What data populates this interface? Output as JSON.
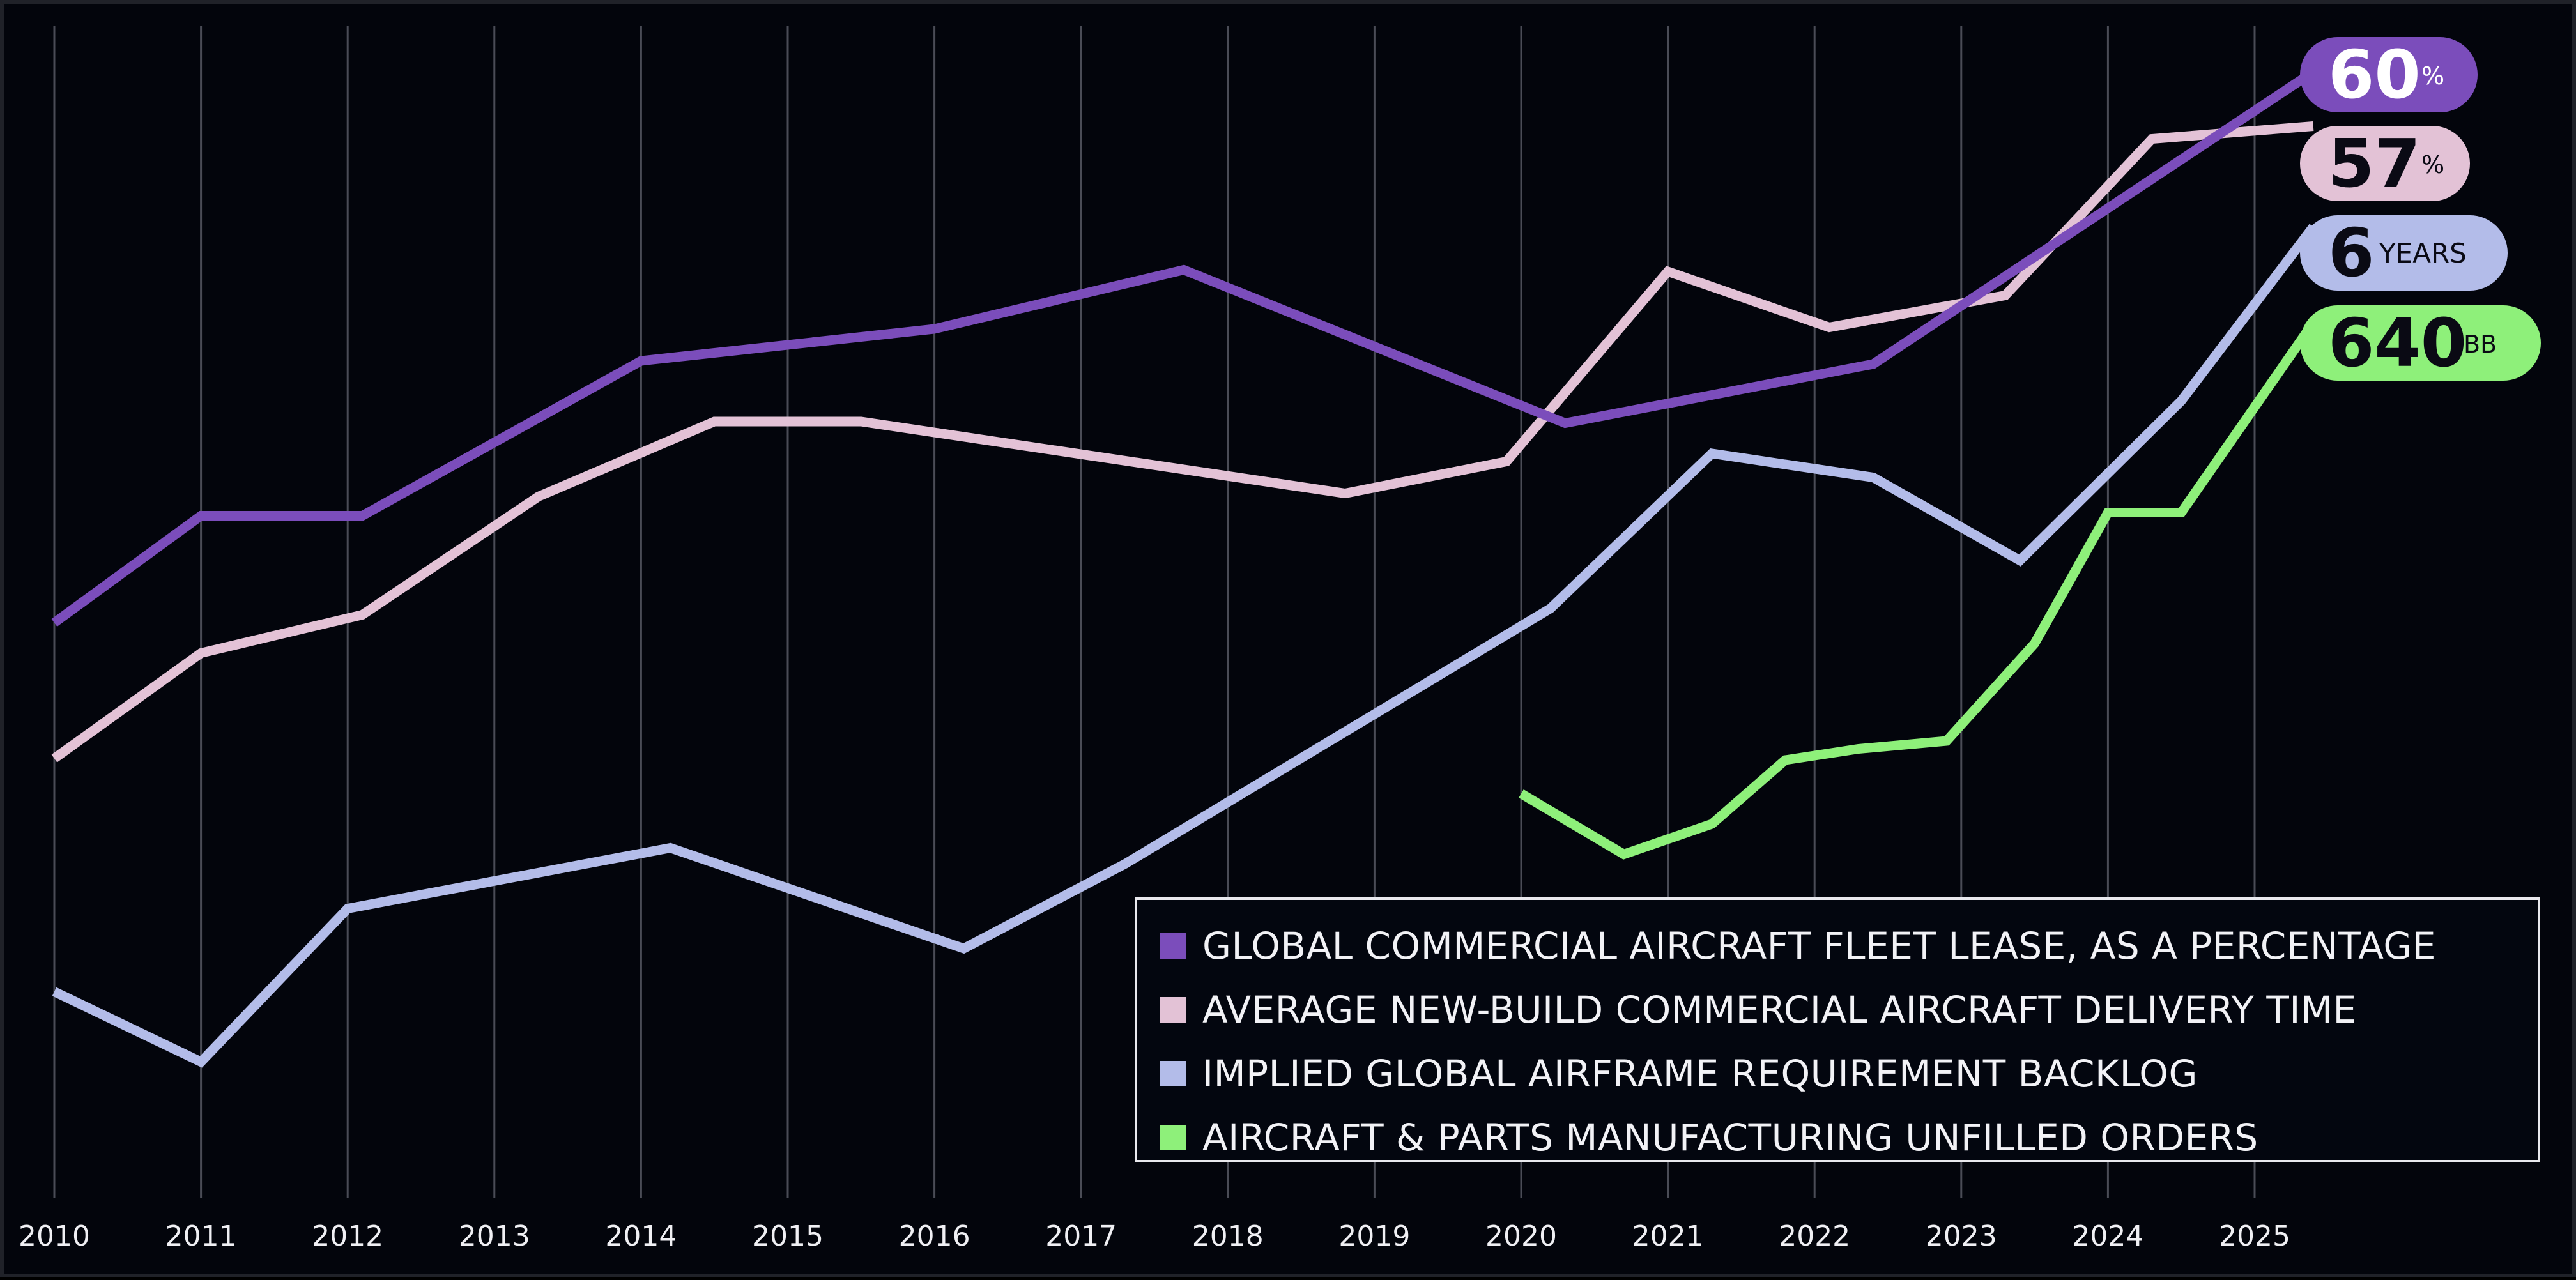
{
  "chart_data": {
    "type": "line",
    "x": [
      "2010",
      "2011",
      "2012",
      "2013",
      "2014",
      "2015",
      "2016",
      "2017",
      "2018",
      "2019",
      "2020",
      "2021",
      "2022",
      "2023",
      "2024",
      "2025"
    ],
    "series": [
      {
        "name": "GLOBAL COMMERCIAL AIRCRAFT FLEET LEASE, AS A PERCENTAGE",
        "color": "#7b4dbb",
        "points": [
          [
            2010,
            41
          ],
          [
            2011,
            47.7
          ],
          [
            2012.1,
            47.7
          ],
          [
            2014,
            57.4
          ],
          [
            2016,
            59.4
          ],
          [
            2017.7,
            63.1
          ],
          [
            2020.3,
            53.5
          ],
          [
            2022.4,
            57.2
          ],
          [
            2025.4,
            75.5
          ]
        ],
        "end_value": "60",
        "end_unit": "%",
        "end_badge_color": "#7b4dbb",
        "end_text_color": "#ffffff"
      },
      {
        "name": "AVERAGE NEW-BUILD COMMERCIAL AIRCRAFT DELIVERY TIME",
        "color": "#e3c2d6",
        "points": [
          [
            2010,
            32.5
          ],
          [
            2011,
            39.1
          ],
          [
            2012.1,
            41.5
          ],
          [
            2013.3,
            48.9
          ],
          [
            2014.5,
            53.6
          ],
          [
            2015.5,
            53.6
          ],
          [
            2018.8,
            49.1
          ],
          [
            2019.9,
            51.1
          ],
          [
            2021,
            63
          ],
          [
            2022.1,
            59.5
          ],
          [
            2023.3,
            61.5
          ],
          [
            2024.3,
            71.3
          ],
          [
            2025.4,
            72.1
          ]
        ],
        "end_value": "57",
        "end_unit": "%",
        "end_badge_color": "#e3c2d6",
        "end_text_color": "#0a0a14"
      },
      {
        "name": "IMPLIED GLOBAL AIRFRAME REQUIREMENT BACKLOG",
        "color": "#b3bce9",
        "points": [
          [
            2010,
            17.9
          ],
          [
            2011,
            13.5
          ],
          [
            2012,
            23.1
          ],
          [
            2014.2,
            26.9
          ],
          [
            2016.2,
            20.6
          ],
          [
            2017.3,
            25.9
          ],
          [
            2020.2,
            41.9
          ],
          [
            2021.3,
            51.6
          ],
          [
            2022.4,
            50.1
          ],
          [
            2023.4,
            44.9
          ],
          [
            2024.5,
            54.9
          ],
          [
            2025.4,
            65.8
          ]
        ],
        "end_value": "6",
        "end_unit": "YEARS",
        "end_badge_color": "#b3bce9",
        "end_text_color": "#0a0a14"
      },
      {
        "name": "AIRCRAFT & PARTS MANUFACTURING UNFILLED ORDERS",
        "color": "#8ef07a",
        "points": [
          [
            2020,
            30.3
          ],
          [
            2020.7,
            26.5
          ],
          [
            2021.3,
            28.4
          ],
          [
            2021.8,
            32.4
          ],
          [
            2022.3,
            33.1
          ],
          [
            2022.9,
            33.6
          ],
          [
            2023.5,
            39.7
          ],
          [
            2024,
            47.9
          ],
          [
            2024.5,
            47.9
          ],
          [
            2025.4,
            59.8
          ]
        ],
        "end_value": "640",
        "end_unit": "BB",
        "end_badge_color": "#8ef07a",
        "end_text_color": "#0a0a14"
      }
    ],
    "ylim": [
      0,
      80
    ],
    "xlim": [
      2009.95,
      2026.95
    ],
    "grid": "vertical lines at each year",
    "legend_position": "bottom-right",
    "title": "",
    "xlabel": "",
    "ylabel": ""
  },
  "colors": {
    "background": "#03050c",
    "gridline": "#4a4c56",
    "axis_label": "#f0f0f4"
  }
}
